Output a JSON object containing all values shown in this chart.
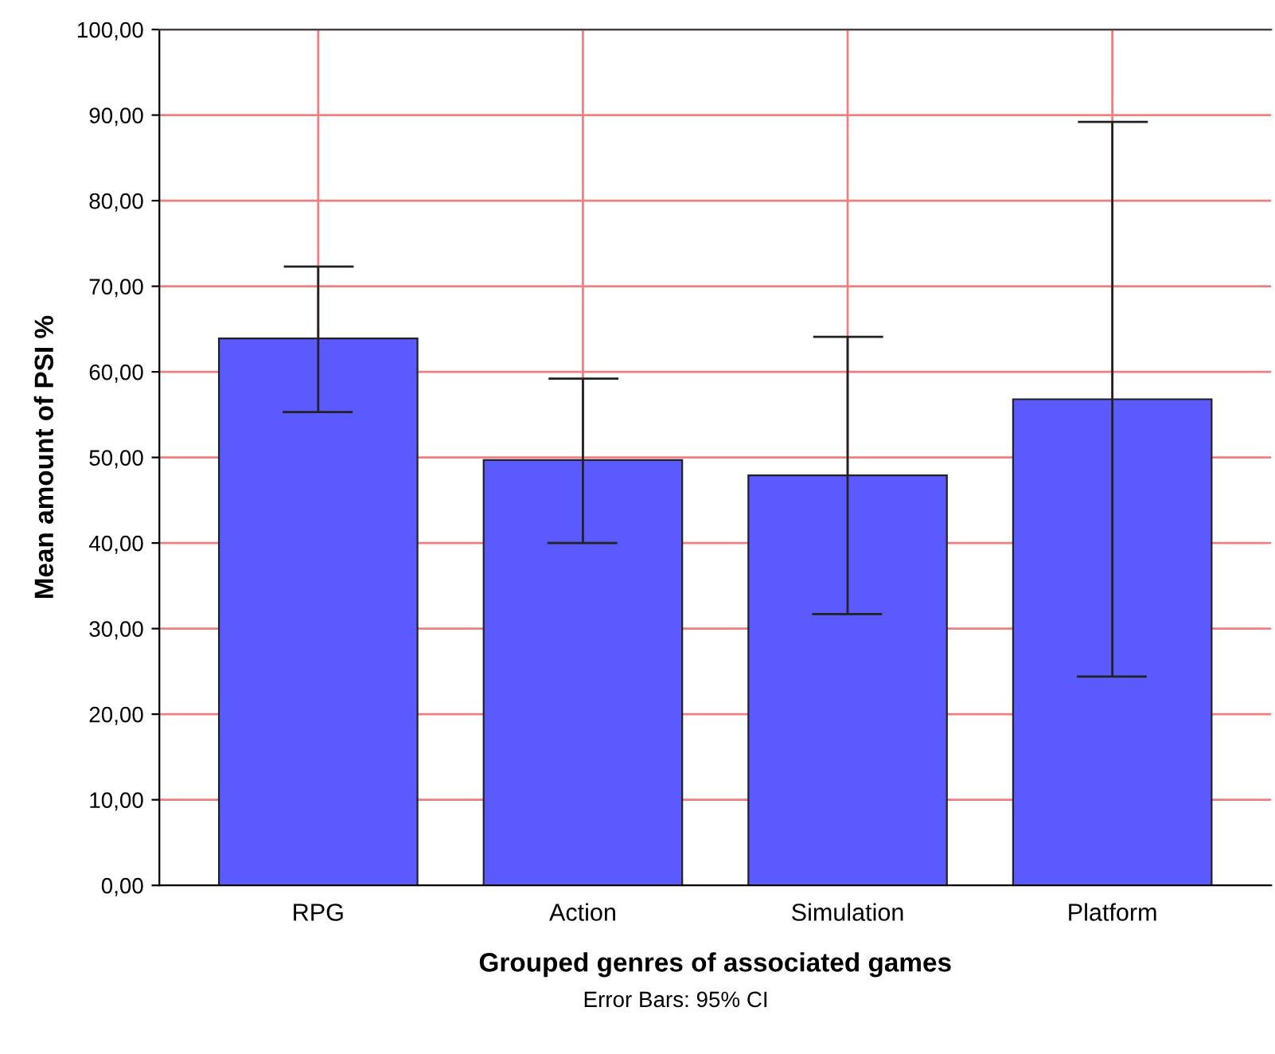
{
  "chart_data": {
    "type": "bar",
    "xlabel": "Grouped genres of associated games",
    "ylabel": "Mean amount of PSI %",
    "categories": [
      "RPG",
      "Action",
      "Simulation",
      "Platform"
    ],
    "values": [
      63.9,
      49.7,
      47.9,
      56.8
    ],
    "errors": [
      [
        55.3,
        72.3
      ],
      [
        40.0,
        59.2
      ],
      [
        31.7,
        64.1
      ],
      [
        24.4,
        89.2
      ]
    ],
    "color": "#5a5aff",
    "ylim": [
      0,
      100
    ],
    "yticks": [
      {
        "value": 0,
        "label": "0,00"
      },
      {
        "value": 10,
        "label": "10,00"
      },
      {
        "value": 20,
        "label": "20,00"
      },
      {
        "value": 30,
        "label": "30,00"
      },
      {
        "value": 40,
        "label": "40,00"
      },
      {
        "value": 50,
        "label": "50,00"
      },
      {
        "value": 60,
        "label": "60,00"
      },
      {
        "value": 70,
        "label": "70,00"
      },
      {
        "value": 80,
        "label": "80,00"
      },
      {
        "value": 90,
        "label": "90,00"
      },
      {
        "value": 100,
        "label": "100,00"
      }
    ],
    "grid": true,
    "annotations": [
      "Error Bars: 95% CI"
    ]
  }
}
